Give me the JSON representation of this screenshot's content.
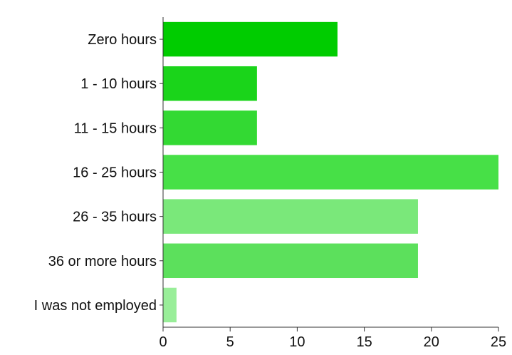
{
  "chart_data": {
    "type": "bar",
    "orientation": "horizontal",
    "categories": [
      "Zero hours",
      "1 - 10 hours",
      "11 - 15 hours",
      "16 - 25 hours",
      "26 - 35 hours",
      "36 or more hours",
      "I was not employed"
    ],
    "values": [
      13,
      7,
      7,
      25,
      19,
      19,
      1
    ],
    "colors": [
      "#00cc00",
      "#1ad41a",
      "#33d933",
      "#47e047",
      "#7ae87a",
      "#5ce05c",
      "#99ee99"
    ],
    "xlim": [
      0,
      25
    ],
    "xticks": [
      0,
      5,
      10,
      15,
      20,
      25
    ],
    "grid": false,
    "legend": "none"
  }
}
